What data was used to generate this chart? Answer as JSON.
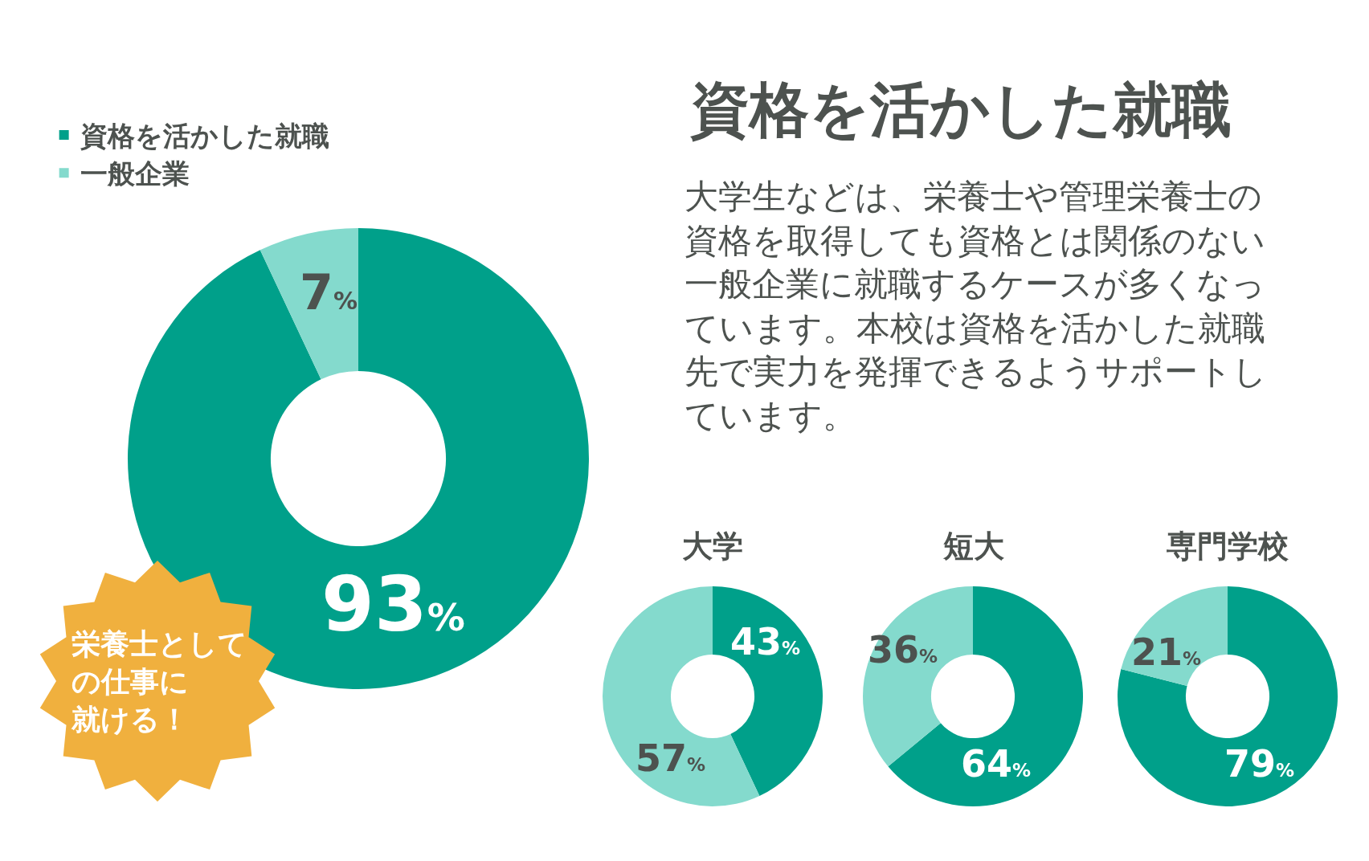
{
  "chart_data": [
    {
      "type": "donut",
      "categories": [
        "資格を活かした就職",
        "一般企業"
      ],
      "values": [
        93,
        7
      ],
      "colors": [
        "#00a08a",
        "#84dacd"
      ],
      "value_labels": [
        "93%",
        "7%"
      ],
      "legend": "top left",
      "annotations": [
        "栄養士としての仕事に就ける！"
      ]
    },
    {
      "type": "other",
      "title": "資格を活かした就職",
      "annotations": [
        "大学生などは、栄養士や管理栄養士の資格を取得しても資格とは関係のない一般企業に就職するケースが多くなっています。本校は資格を活かした就職先で実力を発揮できるようサポートしています。"
      ]
    },
    {
      "type": "donut",
      "title": "大学",
      "categories": [
        null,
        null
      ],
      "values": [
        43,
        57
      ],
      "colors": [
        "#00a08a",
        "#84dacd"
      ],
      "value_labels": [
        "43%",
        "57%"
      ]
    },
    {
      "type": "donut",
      "title": "短大",
      "categories": [
        null,
        null
      ],
      "values": [
        64,
        36
      ],
      "colors": [
        "#00a08a",
        "#84dacd"
      ],
      "value_labels": [
        "64%",
        "36%"
      ]
    },
    {
      "type": "donut",
      "title": "専門学校",
      "categories": [
        null,
        null
      ],
      "values": [
        79,
        21
      ],
      "colors": [
        "#00a08a",
        "#84dacd"
      ],
      "value_labels": [
        "79%",
        "21%"
      ]
    }
  ]
}
